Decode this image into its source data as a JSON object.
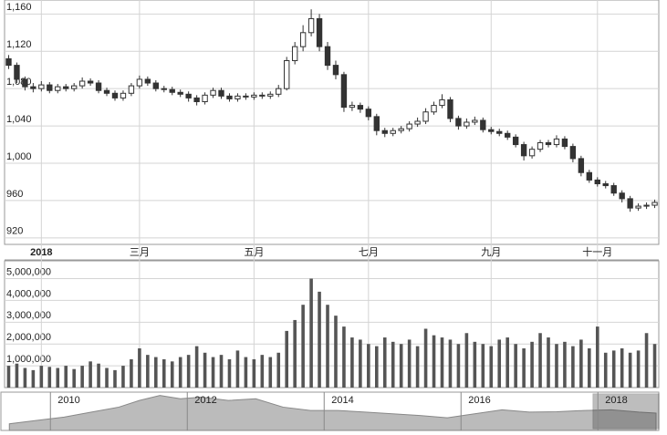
{
  "chart_data": [
    {
      "type": "candlestick",
      "color": "#333333",
      "grid": true,
      "categories": [
        null,
        null,
        null,
        null,
        "2018",
        null,
        null,
        null,
        null,
        null,
        null,
        null,
        null,
        null,
        null,
        null,
        "三月",
        null,
        null,
        null,
        null,
        null,
        null,
        null,
        null,
        null,
        null,
        null,
        null,
        null,
        "五月",
        null,
        null,
        null,
        null,
        null,
        null,
        null,
        null,
        null,
        null,
        null,
        null,
        null,
        "七月",
        null,
        null,
        null,
        null,
        null,
        null,
        null,
        null,
        null,
        null,
        null,
        null,
        null,
        null,
        "九月",
        null,
        null,
        null,
        null,
        null,
        null,
        null,
        null,
        null,
        null,
        null,
        null,
        "十一月",
        null,
        null,
        null,
        null,
        null,
        null,
        null
      ],
      "open": [
        1112,
        1105,
        1090,
        1082,
        1080,
        1084,
        1078,
        1082,
        1080,
        1083,
        1088,
        1086,
        1078,
        1075,
        1070,
        1075,
        1083,
        1090,
        1086,
        1080,
        1079,
        1076,
        1074,
        1070,
        1066,
        1073,
        1078,
        1072,
        1069,
        1072,
        1071,
        1073,
        1072,
        1074,
        1080,
        1110,
        1125,
        1140,
        1155,
        1125,
        1105,
        1095,
        1060,
        1062,
        1058,
        1050,
        1035,
        1032,
        1035,
        1037,
        1042,
        1045,
        1055,
        1062,
        1068,
        1048,
        1040,
        1044,
        1046,
        1036,
        1034,
        1032,
        1028,
        1020,
        1008,
        1015,
        1022,
        1020,
        1026,
        1018,
        1005,
        990,
        982,
        978,
        976,
        968,
        962,
        952,
        954,
        955
      ],
      "high": [
        1116,
        1108,
        1093,
        1086,
        1088,
        1087,
        1085,
        1085,
        1086,
        1092,
        1091,
        1089,
        1081,
        1078,
        1078,
        1086,
        1094,
        1093,
        1089,
        1083,
        1082,
        1079,
        1077,
        1073,
        1076,
        1081,
        1081,
        1075,
        1075,
        1075,
        1076,
        1076,
        1077,
        1084,
        1114,
        1130,
        1148,
        1165,
        1160,
        1130,
        1110,
        1098,
        1066,
        1065,
        1061,
        1053,
        1038,
        1038,
        1040,
        1045,
        1049,
        1059,
        1066,
        1074,
        1071,
        1051,
        1048,
        1050,
        1049,
        1039,
        1037,
        1035,
        1031,
        1023,
        1018,
        1025,
        1025,
        1030,
        1029,
        1021,
        1008,
        993,
        985,
        981,
        979,
        971,
        965,
        957,
        958,
        961
      ],
      "low": [
        1101,
        1086,
        1078,
        1076,
        1077,
        1075,
        1075,
        1077,
        1077,
        1080,
        1083,
        1075,
        1072,
        1067,
        1067,
        1072,
        1080,
        1083,
        1077,
        1076,
        1073,
        1071,
        1066,
        1062,
        1063,
        1070,
        1069,
        1066,
        1066,
        1068,
        1068,
        1069,
        1069,
        1071,
        1078,
        1106,
        1120,
        1136,
        1120,
        1100,
        1090,
        1055,
        1056,
        1054,
        1046,
        1030,
        1028,
        1029,
        1032,
        1034,
        1039,
        1042,
        1052,
        1059,
        1044,
        1036,
        1037,
        1041,
        1033,
        1031,
        1029,
        1025,
        1017,
        1003,
        1005,
        1012,
        1017,
        1017,
        1015,
        1001,
        986,
        979,
        975,
        973,
        965,
        958,
        948,
        949,
        951,
        952
      ],
      "close": [
        1105,
        1090,
        1082,
        1080,
        1084,
        1078,
        1082,
        1080,
        1083,
        1088,
        1086,
        1078,
        1075,
        1070,
        1075,
        1083,
        1090,
        1086,
        1080,
        1079,
        1076,
        1074,
        1070,
        1066,
        1073,
        1078,
        1072,
        1069,
        1072,
        1071,
        1073,
        1072,
        1074,
        1080,
        1110,
        1125,
        1140,
        1155,
        1125,
        1105,
        1095,
        1060,
        1062,
        1058,
        1050,
        1035,
        1032,
        1035,
        1037,
        1042,
        1045,
        1055,
        1062,
        1068,
        1048,
        1040,
        1044,
        1046,
        1036,
        1034,
        1032,
        1028,
        1020,
        1008,
        1015,
        1022,
        1020,
        1026,
        1018,
        1005,
        990,
        982,
        978,
        976,
        968,
        962,
        952,
        954,
        955,
        958
      ],
      "ylim": [
        913,
        1175
      ],
      "yticks": [
        920,
        960,
        {
          "value": 1000,
          "label": "1,000"
        },
        {
          "value": 1040,
          "label": "1,040"
        },
        {
          "value": 1080,
          "label": "1,080"
        },
        {
          "value": 1120,
          "label": "1,120"
        },
        {
          "value": 1160,
          "label": "1,160"
        }
      ]
    },
    {
      "type": "bar",
      "color": "#555555",
      "grid": true,
      "values": [
        1000000,
        1100000,
        900000,
        800000,
        1000000,
        950000,
        900000,
        1000000,
        850000,
        1000000,
        1200000,
        1100000,
        900000,
        800000,
        1000000,
        1300000,
        1800000,
        1500000,
        1400000,
        1300000,
        1200000,
        1400000,
        1500000,
        1900000,
        1600000,
        1400000,
        1500000,
        1300000,
        1700000,
        1400000,
        1300000,
        1500000,
        1400000,
        1600000,
        2600000,
        3100000,
        3800000,
        5000000,
        4400000,
        3800000,
        3300000,
        2800000,
        2300000,
        2200000,
        2000000,
        1900000,
        2300000,
        2100000,
        2000000,
        2200000,
        1900000,
        2700000,
        2400000,
        2300000,
        2200000,
        2000000,
        2500000,
        2100000,
        2000000,
        1900000,
        2200000,
        2300000,
        2000000,
        1800000,
        2100000,
        2500000,
        2300000,
        2000000,
        2100000,
        1900000,
        2200000,
        1800000,
        2800000,
        1600000,
        1700000,
        1800000,
        1600000,
        1700000,
        2500000,
        2000000
      ],
      "ylim": [
        0,
        5650000
      ],
      "yticks": [
        {
          "value": 1000000,
          "label": "1,000,000"
        },
        {
          "value": 2000000,
          "label": "2,000,000"
        },
        {
          "value": 3000000,
          "label": "3,000,000"
        },
        {
          "value": 4000000,
          "label": "4,000,000"
        },
        {
          "value": 5000000,
          "label": "5,000,000"
        }
      ]
    },
    {
      "type": "area",
      "color": "#bbbbbb",
      "selected_color": "#444444",
      "x": [
        2009.4,
        2009.8,
        2010.2,
        2010.6,
        2011.0,
        2011.3,
        2011.6,
        2011.9,
        2012.2,
        2012.6,
        2013.0,
        2013.4,
        2013.8,
        2014.2,
        2014.6,
        2015.0,
        2015.4,
        2015.8,
        2016.2,
        2016.6,
        2017.0,
        2017.4,
        2017.8,
        2018.2,
        2018.6,
        2018.85
      ],
      "values": [
        900,
        1000,
        1100,
        1250,
        1400,
        1600,
        1750,
        1650,
        1700,
        1600,
        1650,
        1400,
        1300,
        1300,
        1250,
        1200,
        1150,
        1080,
        1200,
        1320,
        1250,
        1260,
        1300,
        1320,
        1250,
        1220
      ],
      "xlim": [
        2009.33,
        2018.89
      ],
      "ylim": [
        700,
        1850
      ],
      "xticks": [
        2010,
        2012,
        2014,
        2016,
        2018
      ],
      "selected_range": [
        2017.93,
        2018.89
      ]
    }
  ]
}
